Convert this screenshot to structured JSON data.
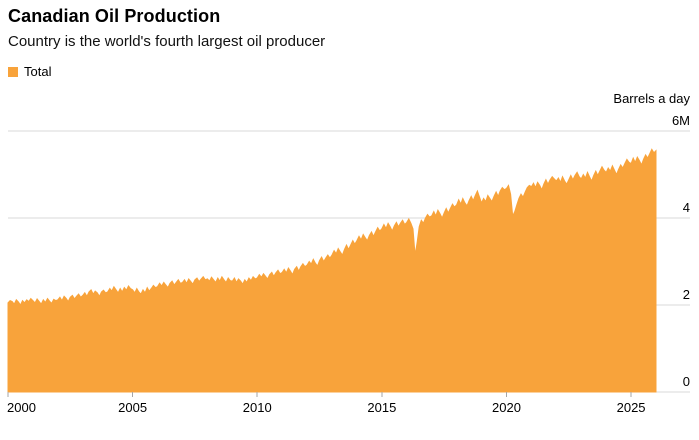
{
  "header": {
    "title": "Canadian Oil Production",
    "subtitle": "Country is the world's fourth largest oil producer"
  },
  "legend": {
    "items": [
      {
        "label": "Total",
        "color": "#F8A33B"
      }
    ]
  },
  "colors": {
    "accent": "#F8A33B",
    "grid": "#D9D9D9",
    "text": "#000000"
  },
  "chart_data": {
    "type": "area",
    "title": "Canadian Oil Production",
    "subtitle": "Country is the world's fourth largest oil producer",
    "unit_label": "Barrels a day",
    "x_start": 2000,
    "x_end": 2026,
    "x_step_months": 1,
    "x_ticks": [
      2000,
      2005,
      2010,
      2015,
      2020,
      2025
    ],
    "y_ticks": [
      {
        "value": 0,
        "label": "0"
      },
      {
        "value": 2,
        "label": "2"
      },
      {
        "value": 4,
        "label": "4"
      },
      {
        "value": 6,
        "label": "6M"
      }
    ],
    "ylim": [
      0,
      6
    ],
    "grid": "horizontal",
    "legend_position": "top-left",
    "series": [
      {
        "name": "Total",
        "color": "#F8A33B",
        "values": [
          2.05,
          2.1,
          2.08,
          2.02,
          2.12,
          2.07,
          2.0,
          2.1,
          2.05,
          2.12,
          2.08,
          2.15,
          2.1,
          2.05,
          2.14,
          2.08,
          2.02,
          2.12,
          2.06,
          2.15,
          2.09,
          2.04,
          2.13,
          2.1,
          2.12,
          2.18,
          2.1,
          2.2,
          2.15,
          2.08,
          2.18,
          2.22,
          2.14,
          2.2,
          2.25,
          2.18,
          2.22,
          2.28,
          2.2,
          2.3,
          2.35,
          2.25,
          2.32,
          2.28,
          2.2,
          2.3,
          2.34,
          2.28,
          2.3,
          2.38,
          2.32,
          2.42,
          2.35,
          2.28,
          2.38,
          2.3,
          2.4,
          2.34,
          2.44,
          2.38,
          2.35,
          2.28,
          2.38,
          2.3,
          2.25,
          2.35,
          2.28,
          2.4,
          2.32,
          2.38,
          2.45,
          2.4,
          2.42,
          2.5,
          2.44,
          2.52,
          2.46,
          2.4,
          2.5,
          2.55,
          2.46,
          2.52,
          2.58,
          2.5,
          2.52,
          2.58,
          2.5,
          2.6,
          2.54,
          2.48,
          2.58,
          2.62,
          2.54,
          2.6,
          2.65,
          2.58,
          2.6,
          2.55,
          2.64,
          2.58,
          2.52,
          2.62,
          2.55,
          2.65,
          2.58,
          2.52,
          2.62,
          2.56,
          2.55,
          2.62,
          2.52,
          2.6,
          2.55,
          2.48,
          2.58,
          2.52,
          2.62,
          2.56,
          2.65,
          2.6,
          2.62,
          2.7,
          2.64,
          2.72,
          2.66,
          2.6,
          2.7,
          2.75,
          2.66,
          2.74,
          2.8,
          2.72,
          2.75,
          2.82,
          2.74,
          2.85,
          2.78,
          2.7,
          2.82,
          2.88,
          2.78,
          2.88,
          2.95,
          2.88,
          2.92,
          3.0,
          2.94,
          3.05,
          2.96,
          2.9,
          3.02,
          3.1,
          3.0,
          3.08,
          3.15,
          3.08,
          3.15,
          3.25,
          3.18,
          3.3,
          3.22,
          3.15,
          3.28,
          3.38,
          3.28,
          3.38,
          3.48,
          3.4,
          3.48,
          3.58,
          3.5,
          3.62,
          3.55,
          3.48,
          3.6,
          3.68,
          3.58,
          3.68,
          3.78,
          3.7,
          3.75,
          3.85,
          3.76,
          3.88,
          3.8,
          3.7,
          3.82,
          3.9,
          3.8,
          3.88,
          3.95,
          3.85,
          3.9,
          3.98,
          3.88,
          3.75,
          3.15,
          3.45,
          3.8,
          3.95,
          3.88,
          4.0,
          4.08,
          4.02,
          4.05,
          4.15,
          4.05,
          4.18,
          4.1,
          4.0,
          4.12,
          4.22,
          4.12,
          4.22,
          4.32,
          4.25,
          4.3,
          4.42,
          4.32,
          4.45,
          4.35,
          4.28,
          4.4,
          4.5,
          4.4,
          4.52,
          4.62,
          4.48,
          4.35,
          4.45,
          4.38,
          4.52,
          4.45,
          4.38,
          4.5,
          4.6,
          4.5,
          4.62,
          4.7,
          4.65,
          4.68,
          4.75,
          4.55,
          4.05,
          4.15,
          4.3,
          4.45,
          4.55,
          4.48,
          4.6,
          4.7,
          4.75,
          4.72,
          4.8,
          4.7,
          4.82,
          4.75,
          4.65,
          4.78,
          4.88,
          4.78,
          4.88,
          4.95,
          4.9,
          4.85,
          4.92,
          4.82,
          4.95,
          4.85,
          4.78,
          4.88,
          4.98,
          4.88,
          4.98,
          5.05,
          4.95,
          4.9,
          5.0,
          4.92,
          5.05,
          4.95,
          4.85,
          4.98,
          5.08,
          4.98,
          5.08,
          5.18,
          5.1,
          5.05,
          5.15,
          5.08,
          5.2,
          5.1,
          5.0,
          5.12,
          5.22,
          5.15,
          5.25,
          5.35,
          5.28,
          5.25,
          5.38,
          5.28,
          5.4,
          5.32,
          5.22,
          5.35,
          5.45,
          5.38,
          5.48,
          5.58,
          5.5,
          5.55
        ]
      }
    ]
  }
}
